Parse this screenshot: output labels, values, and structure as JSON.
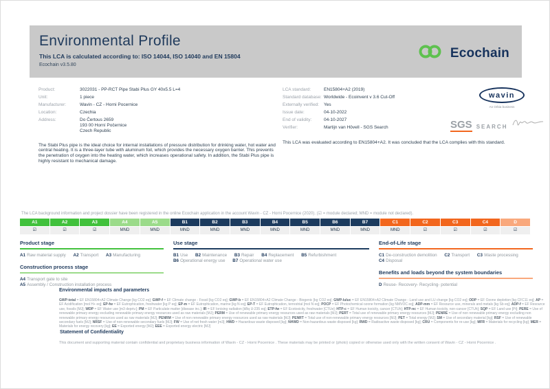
{
  "header": {
    "title": "Environmental Profile",
    "subtitle": "This LCA is calculated according to: ISO 14044, ISO 14040 and EN 15804",
    "version": "Ecochain v3.5.80",
    "brand": "Ecochain"
  },
  "product_info": {
    "rows": [
      {
        "label": "Product:",
        "value": "3022031 - PP-RCT Pipe Stabi Plus GY 40x5.5 L=4"
      },
      {
        "label": "Unit:",
        "value": "1 piece"
      },
      {
        "label": "Manufacturer:",
        "value": "Wavin - CZ - Horni Pocernice"
      },
      {
        "label": "Location:",
        "value": "Czechia"
      },
      {
        "label": "Address:",
        "value": "Do Čertous 2659\n193 00 Horní Počernice\nCzech Republic"
      }
    ],
    "description": "The Stabi Plus pipe is the ideal choice for internal installations of pressure distribution for drinking water, hot water and central heating. It is a three-layer tube with aluminum foil, which provides the necessary oxygen barrier. This prevents the penetration of oxygen into the heating water, which increases operational safety. In addition, the Stabi Plus pipe is highly resistant to mechanical damage."
  },
  "lca_info": {
    "rows": [
      {
        "label": "LCA standard:",
        "value": "EN15804+A2 (2019)"
      },
      {
        "label": "Standard database:",
        "value": "Worldwide - Ecoinvent v 3.6 Cut-Off"
      },
      {
        "label": "Externally verified:",
        "value": "Yes"
      },
      {
        "label": "Issue date:",
        "value": "04-10-2022"
      },
      {
        "label": "End of validity:",
        "value": "04-10-2027"
      },
      {
        "label": "Verifier:",
        "value": "Martijn van Hövell - SGS Search"
      }
    ],
    "evaluation": "This LCA was evaluated according to EN15804+A2. It was concluded that the LCA complies with this standard."
  },
  "logos": {
    "wavin_name": "wavin",
    "wavin_tagline": "An Orbia business",
    "sgs_name": "SGS",
    "sgs_search": "SEARCH"
  },
  "registration_note": "The LCA background information and project dossier have been registered in the online Ecochain application in the account Wavin - CZ - Horni Pocernice (2020). (☑ = module declared; MND = module not declared).",
  "colors": {
    "product": "#41c13c",
    "construction": "#9bdb8a",
    "use": "#1c3b5e",
    "eol": "#f2661d",
    "benefits": "#f9a87c",
    "navy": "#1f3a5c",
    "green_logo": "#5ec14f",
    "orange": "#f2661d",
    "header_gray": "#c9c9c9"
  },
  "module_table": {
    "columns": [
      {
        "id": "A1",
        "group": "product",
        "status": "☑"
      },
      {
        "id": "A2",
        "group": "product",
        "status": "☑"
      },
      {
        "id": "A3",
        "group": "product",
        "status": "☑"
      },
      {
        "id": "A4",
        "group": "construction",
        "status": "MND"
      },
      {
        "id": "A5",
        "group": "construction",
        "status": "MND"
      },
      {
        "id": "B1",
        "group": "use",
        "status": "MND"
      },
      {
        "id": "B2",
        "group": "use",
        "status": "MND"
      },
      {
        "id": "B3",
        "group": "use",
        "status": "MND"
      },
      {
        "id": "B4",
        "group": "use",
        "status": "MND"
      },
      {
        "id": "B5",
        "group": "use",
        "status": "MND"
      },
      {
        "id": "B6",
        "group": "use",
        "status": "MND"
      },
      {
        "id": "B7",
        "group": "use",
        "status": "MND"
      },
      {
        "id": "C1",
        "group": "eol",
        "status": "MND"
      },
      {
        "id": "C2",
        "group": "eol",
        "status": "☑"
      },
      {
        "id": "C3",
        "group": "eol",
        "status": "☑"
      },
      {
        "id": "C4",
        "group": "eol",
        "status": "☑"
      },
      {
        "id": "D",
        "group": "benefits",
        "status": "☑"
      }
    ]
  },
  "stages": {
    "groups": [
      {
        "id": "product",
        "heading": "Product stage",
        "items": [
          {
            "code": "A1",
            "label": "Raw material supply"
          },
          {
            "code": "A2",
            "label": "Transport"
          },
          {
            "code": "A3",
            "label": "Manufacturing"
          }
        ]
      },
      {
        "id": "construction",
        "heading": "Construction process stage",
        "items": [
          {
            "code": "A4",
            "label": "Transport gate to site"
          },
          {
            "code": "A5",
            "label": "Assembly / Construction installation process"
          }
        ]
      },
      {
        "id": "use",
        "heading": "Use stage",
        "items": [
          {
            "code": "B1",
            "label": "Use"
          },
          {
            "code": "B2",
            "label": "Maintenance"
          },
          {
            "code": "B3",
            "label": "Repair"
          },
          {
            "code": "B4",
            "label": "Replacement"
          },
          {
            "code": "B5",
            "label": "Refurbishment"
          },
          {
            "code": "B6",
            "label": "Operational energy use"
          },
          {
            "code": "B7",
            "label": "Operational water use"
          }
        ]
      },
      {
        "id": "eol",
        "heading": "End-of-Life stage",
        "items": [
          {
            "code": "C1",
            "label": "De-construction demolition"
          },
          {
            "code": "C2",
            "label": "Transport"
          },
          {
            "code": "C3",
            "label": "Waste processing"
          },
          {
            "code": "C4",
            "label": "Disposal"
          }
        ]
      },
      {
        "id": "benefits",
        "heading": "Benefits and loads beyond the system boundaries",
        "items": [
          {
            "code": "D",
            "label": "Reuse- Recovery- Recycling- potential"
          }
        ]
      }
    ]
  },
  "impacts": {
    "heading": "Environmental impacts and parameters",
    "params": [
      {
        "code": "GWP-total",
        "desc": "EF EN15804+A2 Climate Change [kg CO2 eq]"
      },
      {
        "code": "GWP-f",
        "desc": "EF Climate change - Fossil [kg CO2 eq]"
      },
      {
        "code": "GWP-b",
        "desc": "EF EN15804+A2 Climate Change - Biogenic [kg CO2 eq]"
      },
      {
        "code": "GWP-luluc",
        "desc": "EF EN15804+A2 Climate Change - Land use and LU change [kg CO2 eq]"
      },
      {
        "code": "ODP",
        "desc": "EF Ozone depletion [kg CFC11 eq]"
      },
      {
        "code": "AP",
        "desc": "EF Acidification [mol H+ eq]"
      },
      {
        "code": "EP-fw",
        "desc": "EF Eutrophication, freshwater [kg P eq]"
      },
      {
        "code": "EP-m",
        "desc": "EF Eutrophication, marine [kg N eq]"
      },
      {
        "code": "EP-T",
        "desc": "EF Eutrophication, terrestrial [mol N eq]"
      },
      {
        "code": "POCP",
        "desc": "EF Photochemical ozone formation [kg NMVOC eq]"
      },
      {
        "code": "ADP-mm",
        "desc": "EF Resource use, minerals and metals [kg Sb eq]"
      },
      {
        "code": "ADP-f",
        "desc": "EF Resource use, fossils [MJ]"
      },
      {
        "code": "WDP",
        "desc": "EF Water use [m3 depriv.]"
      },
      {
        "code": "PM",
        "desc": "EF Particulate matter [disease inc.]"
      },
      {
        "code": "IR",
        "desc": "EF Ionising radiation [kBq U-235 eq]"
      },
      {
        "code": "ETP-fw",
        "desc": "EF Ecotoxicity, freshwater [CTUe]"
      },
      {
        "code": "HTP-c",
        "desc": "EF Human toxicity, cancer [CTUh]"
      },
      {
        "code": "HTP-nc",
        "desc": "EF Human toxicity, non-cancer [CTUh]"
      },
      {
        "code": "SQP",
        "desc": "EF Land use [Pt]"
      },
      {
        "code": "PERE",
        "desc": "Use of renewable primary energy excluding renewable primary energy resources used as raw materials [MJ]"
      },
      {
        "code": "PERM",
        "desc": "Use of renewable primary energy resources used as raw materials [MJ]"
      },
      {
        "code": "PERT",
        "desc": "Total use of renewable primary energy resources [MJ]"
      },
      {
        "code": "PENRE",
        "desc": "Use of non renewable primary energy excluding non renewable primary energy resources used as raw materials [MJ]"
      },
      {
        "code": "PENRM",
        "desc": "Use of non renewable primary energy resources used as raw materials [MJ]"
      },
      {
        "code": "PENRT",
        "desc": "Total use of non-renewable primary energy resources [MJ]"
      },
      {
        "code": "PET",
        "desc": "Total energy [MJ]"
      },
      {
        "code": "SM",
        "desc": "Use of secondary material [kg]"
      },
      {
        "code": "RSF",
        "desc": "Use of renewable secondary fuels [MJ]"
      },
      {
        "code": "NRSF",
        "desc": "Use of non-renewable secondary fuels [MJ]"
      },
      {
        "code": "FW",
        "desc": "Use of net fresh water [m3]"
      },
      {
        "code": "HWD",
        "desc": "Hazardous waste disposed [kg]"
      },
      {
        "code": "NHWD",
        "desc": "Non-hazardous waste disposed [kg]"
      },
      {
        "code": "RWD",
        "desc": "Radioactive waste disposed [kg]"
      },
      {
        "code": "CRU",
        "desc": "Components for re-use [kg]"
      },
      {
        "code": "MFR",
        "desc": "Materials for recycling [kg]"
      },
      {
        "code": "MER",
        "desc": "Materials for energy recovery [kg]"
      },
      {
        "code": "EE",
        "desc": "Exported energy [MJ]"
      },
      {
        "code": "EEE",
        "desc": "Exported energy electric [MJ]"
      }
    ]
  },
  "confidentiality": {
    "heading": "Statement of Confidentiality",
    "body": "This document and supporting material contain confidential and proprietary business information of Wavin - CZ - Horni Pocernice . These materials may be printed or (photo) copied or otherwise used only with the written consent of Wavin - CZ - Horni Pocernice ."
  }
}
